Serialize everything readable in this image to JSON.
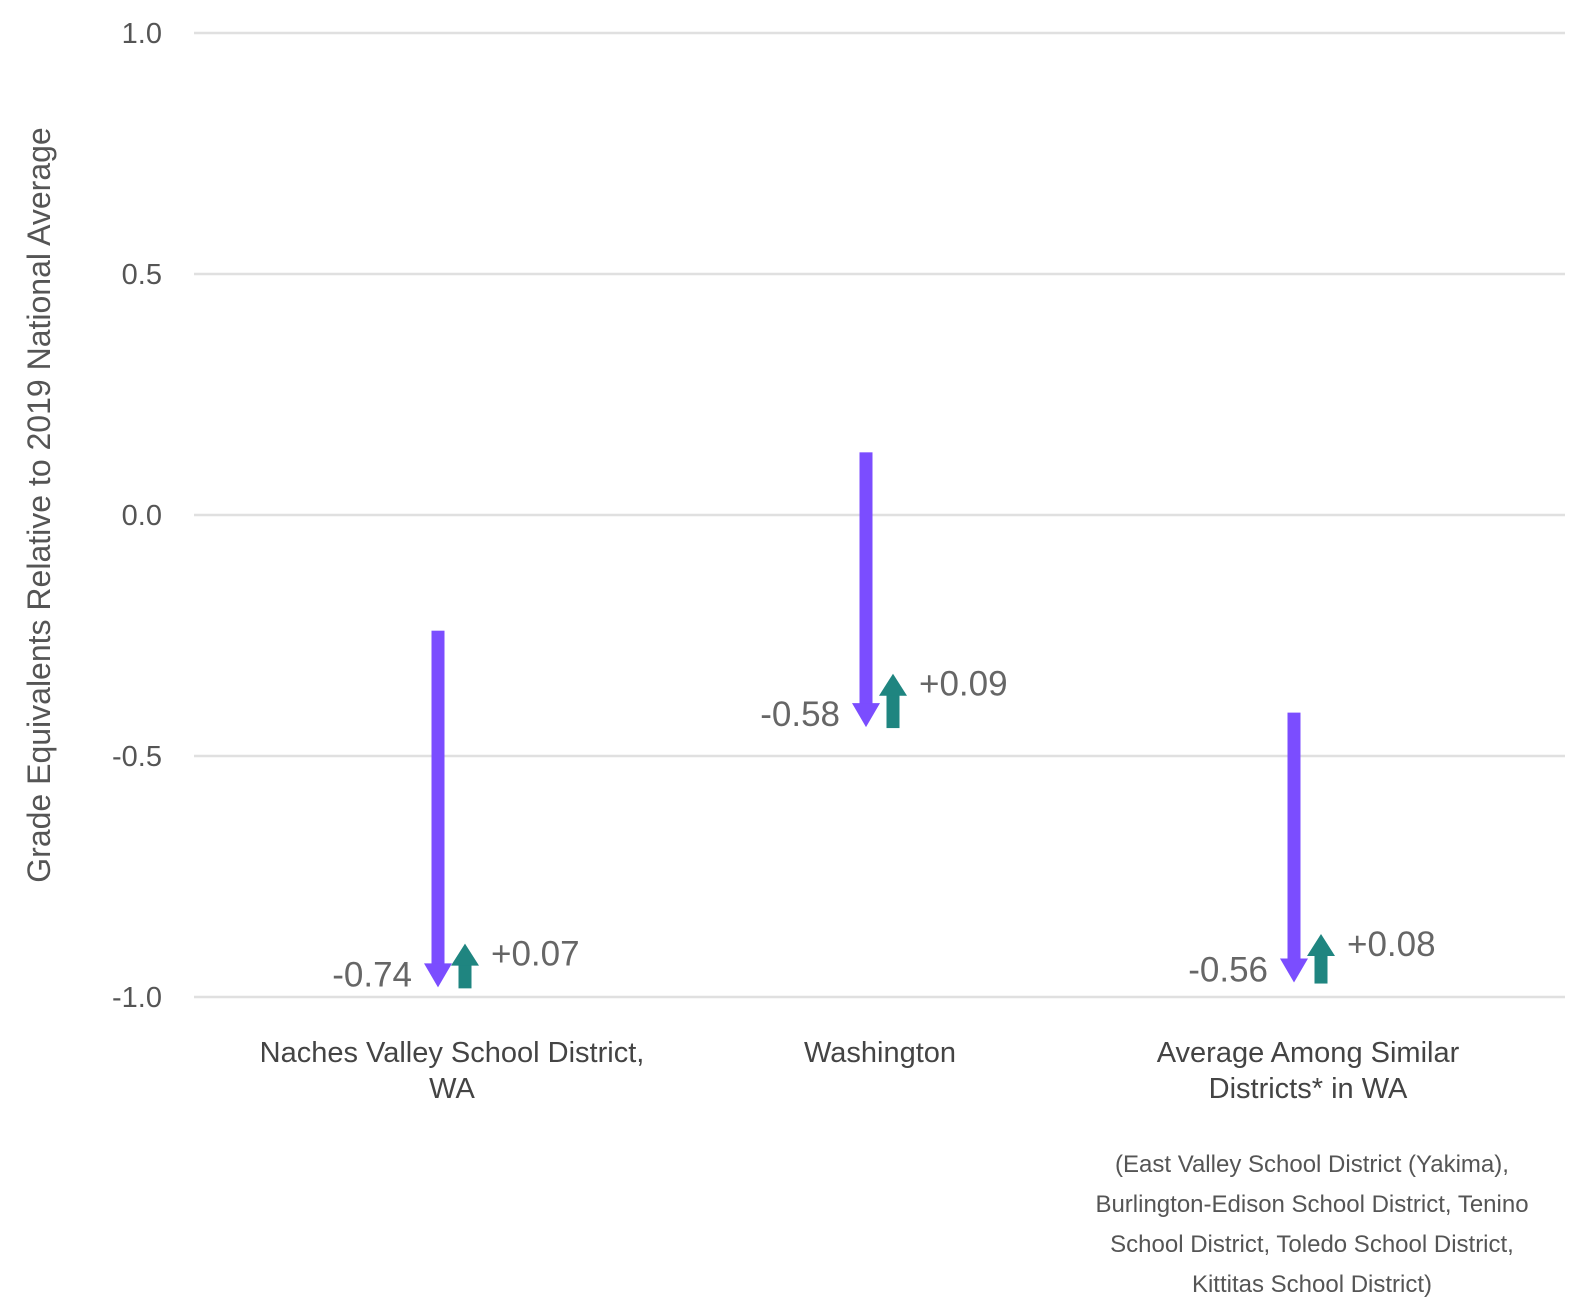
{
  "chart_data": {
    "type": "arrow",
    "title": "",
    "ylabel": "Grade Equivalents Relative to 2019 National Average",
    "ylim": [
      -1.0,
      1.0
    ],
    "yticks": [
      "1.0",
      "0.5",
      "0.0",
      "-0.5",
      "-1.0"
    ],
    "categories": [
      {
        "label_lines": [
          "Naches Valley School District,",
          "WA"
        ],
        "start": -0.24,
        "end": -0.98,
        "change": "-0.74",
        "recovery": "+0.07",
        "recovery_from": -0.98,
        "recovery_to": -0.91
      },
      {
        "label_lines": [
          "Washington"
        ],
        "start": 0.13,
        "end": -0.44,
        "change": "-0.58",
        "recovery": "+0.09",
        "recovery_from": -0.44,
        "recovery_to": -0.35
      },
      {
        "label_lines": [
          "Average Among Similar",
          "Districts* in WA"
        ],
        "start": -0.41,
        "end": -0.97,
        "change": "-0.56",
        "recovery": "+0.08",
        "recovery_from": -0.97,
        "recovery_to": -0.89
      }
    ],
    "footnote_lines": [
      "(East Valley School District (Yakima),",
      "Burlington-Edison School District, Tenino",
      "School District, Toledo School District,",
      "Kittitas School District)"
    ],
    "colors": {
      "decline": "#7b4dff",
      "recovery": "#1f8580",
      "grid": "#e0e0e0",
      "text": "#555555"
    },
    "grid": true
  }
}
